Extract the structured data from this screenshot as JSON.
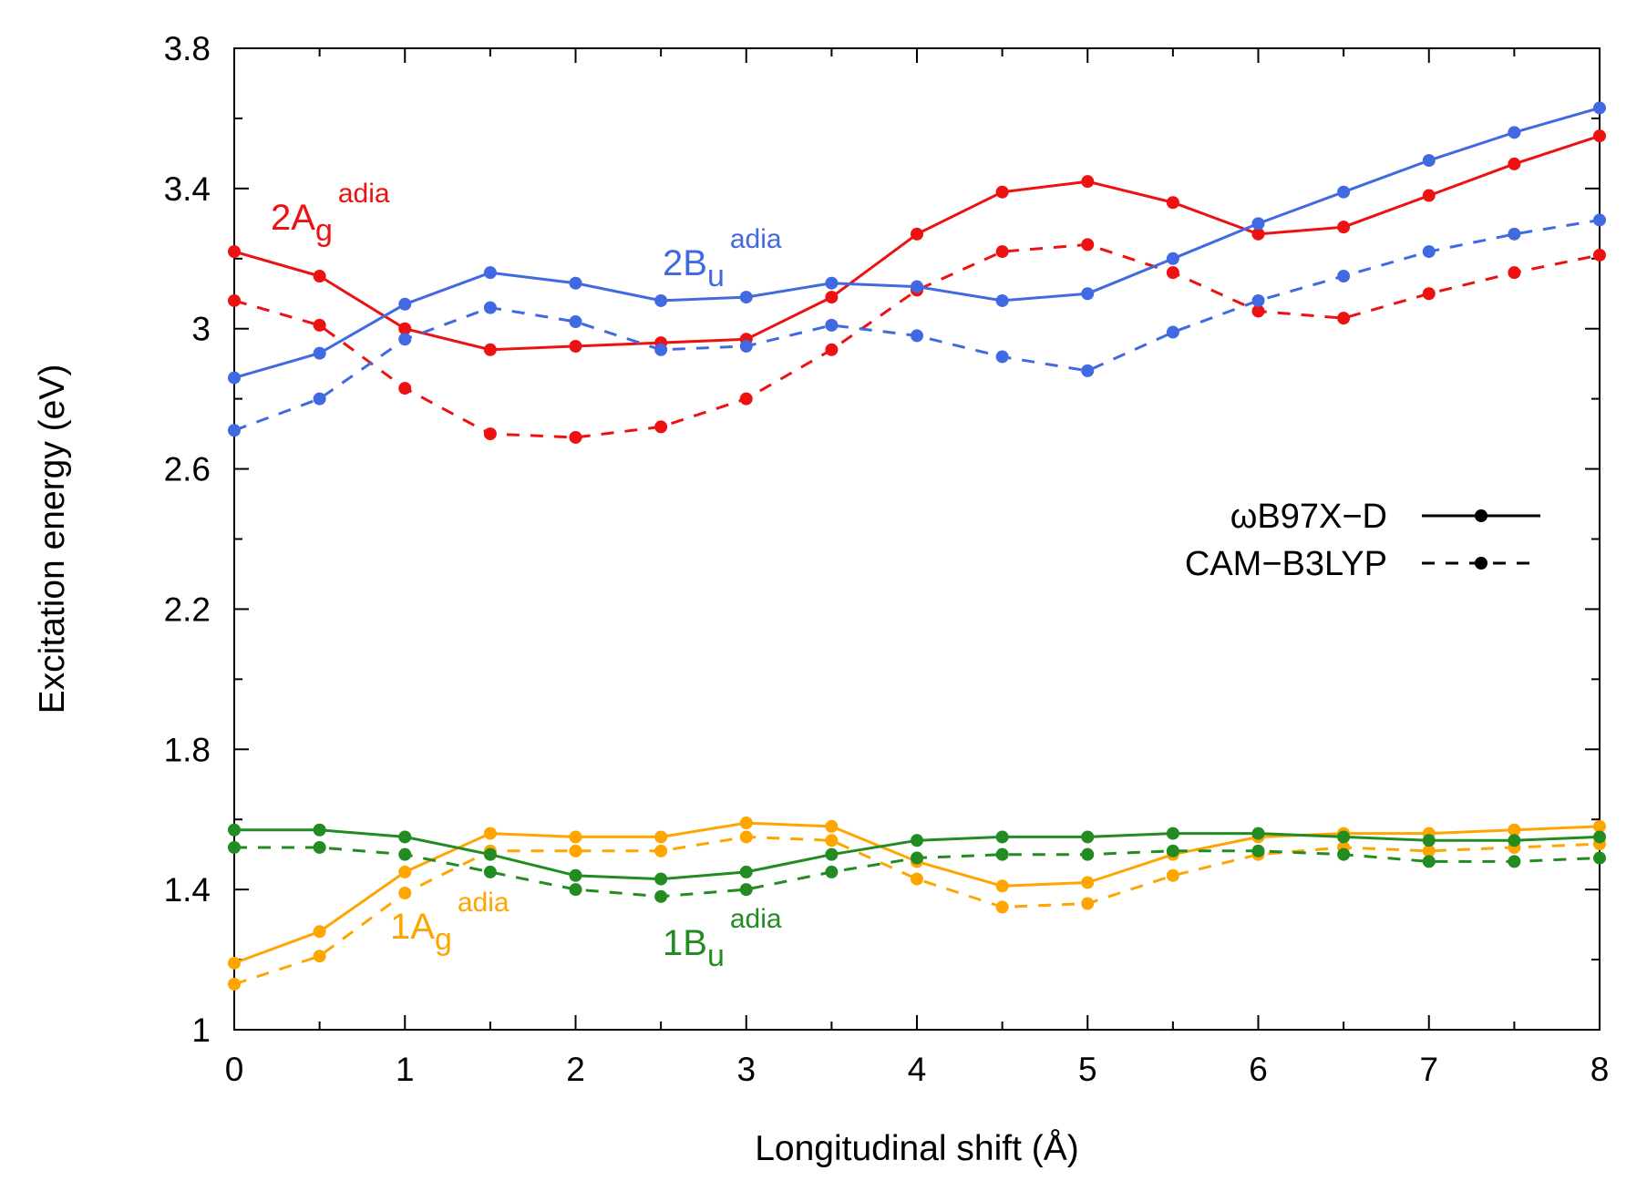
{
  "chart_data": {
    "type": "line",
    "title": "",
    "xlabel": "Longitudinal shift (Å)",
    "ylabel": "Excitation energy (eV)",
    "xlim": [
      0,
      8
    ],
    "ylim": [
      1,
      3.8
    ],
    "xticks": [
      0,
      1,
      2,
      3,
      4,
      5,
      6,
      7,
      8
    ],
    "yticks": [
      1,
      1.4,
      1.8,
      2.2,
      2.6,
      3,
      3.4,
      3.8
    ],
    "xtick_labels": [
      "0",
      "1",
      "2",
      "3",
      "4",
      "5",
      "6",
      "7",
      "8"
    ],
    "ytick_labels": [
      "1",
      "1.4",
      "1.8",
      "2.2",
      "2.6",
      "3",
      "3.4",
      "3.8"
    ],
    "x": [
      0,
      0.5,
      1,
      1.5,
      2,
      2.5,
      3,
      3.5,
      4,
      4.5,
      5,
      5.5,
      6,
      6.5,
      7,
      7.5,
      8
    ],
    "legend": {
      "position": "right-middle",
      "entries": [
        {
          "label": "ωB97X−D",
          "style": "solid"
        },
        {
          "label": "CAM−B3LYP",
          "style": "dashed"
        }
      ]
    },
    "series": [
      {
        "name": "2Ag adia ωB97X-D",
        "state": "2Ag",
        "method": "ωB97X-D",
        "style": "solid",
        "color": "#ee1111",
        "values": [
          3.22,
          3.15,
          3.0,
          2.94,
          2.95,
          2.96,
          2.97,
          3.09,
          3.27,
          3.39,
          3.42,
          3.36,
          3.27,
          3.29,
          3.38,
          3.47,
          3.55
        ]
      },
      {
        "name": "2Ag adia CAM-B3LYP",
        "state": "2Ag",
        "method": "CAM-B3LYP",
        "style": "dashed",
        "color": "#ee1111",
        "values": [
          3.08,
          3.01,
          2.83,
          2.7,
          2.69,
          2.72,
          2.8,
          2.94,
          3.11,
          3.22,
          3.24,
          3.16,
          3.05,
          3.03,
          3.1,
          3.16,
          3.21
        ]
      },
      {
        "name": "2Bu adia ωB97X-D",
        "state": "2Bu",
        "method": "ωB97X-D",
        "style": "solid",
        "color": "#4169e1",
        "values": [
          2.86,
          2.93,
          3.07,
          3.16,
          3.13,
          3.08,
          3.09,
          3.13,
          3.12,
          3.08,
          3.1,
          3.2,
          3.3,
          3.39,
          3.48,
          3.56,
          3.63
        ]
      },
      {
        "name": "2Bu adia CAM-B3LYP",
        "state": "2Bu",
        "method": "CAM-B3LYP",
        "style": "dashed",
        "color": "#4169e1",
        "values": [
          2.71,
          2.8,
          2.97,
          3.06,
          3.02,
          2.94,
          2.95,
          3.01,
          2.98,
          2.92,
          2.88,
          2.99,
          3.08,
          3.15,
          3.22,
          3.27,
          3.31
        ]
      },
      {
        "name": "1Ag adia ωB97X-D",
        "state": "1Ag",
        "method": "ωB97X-D",
        "style": "solid",
        "color": "#ffa500",
        "values": [
          1.19,
          1.28,
          1.45,
          1.56,
          1.55,
          1.55,
          1.59,
          1.58,
          1.48,
          1.41,
          1.42,
          1.5,
          1.55,
          1.56,
          1.56,
          1.57,
          1.58
        ]
      },
      {
        "name": "1Ag adia CAM-B3LYP",
        "state": "1Ag",
        "method": "CAM-B3LYP",
        "style": "dashed",
        "color": "#ffa500",
        "values": [
          1.13,
          1.21,
          1.39,
          1.51,
          1.51,
          1.51,
          1.55,
          1.54,
          1.43,
          1.35,
          1.36,
          1.44,
          1.5,
          1.52,
          1.51,
          1.52,
          1.53
        ]
      },
      {
        "name": "1Bu adia ωB97X-D",
        "state": "1Bu",
        "method": "ωB97X-D",
        "style": "solid",
        "color": "#228b22",
        "values": [
          1.57,
          1.57,
          1.55,
          1.5,
          1.44,
          1.43,
          1.45,
          1.5,
          1.54,
          1.55,
          1.55,
          1.56,
          1.56,
          1.55,
          1.54,
          1.54,
          1.55
        ]
      },
      {
        "name": "1Bu adia CAM-B3LYP",
        "state": "1Bu",
        "method": "CAM-B3LYP",
        "style": "dashed",
        "color": "#228b22",
        "values": [
          1.52,
          1.52,
          1.5,
          1.45,
          1.4,
          1.38,
          1.4,
          1.45,
          1.49,
          1.5,
          1.5,
          1.51,
          1.51,
          1.5,
          1.48,
          1.48,
          1.49
        ]
      }
    ],
    "annotations": [
      {
        "key": "2Ag",
        "base": "2A",
        "sub": "g",
        "sup": "adia",
        "color": "#ee1111"
      },
      {
        "key": "2Bu",
        "base": "2B",
        "sub": "u",
        "sup": "adia",
        "color": "#4169e1"
      },
      {
        "key": "1Ag",
        "base": "1A",
        "sub": "g",
        "sup": "adia",
        "color": "#ffa500"
      },
      {
        "key": "1Bu",
        "base": "1B",
        "sub": "u",
        "sup": "adia",
        "color": "#228b22"
      }
    ]
  }
}
